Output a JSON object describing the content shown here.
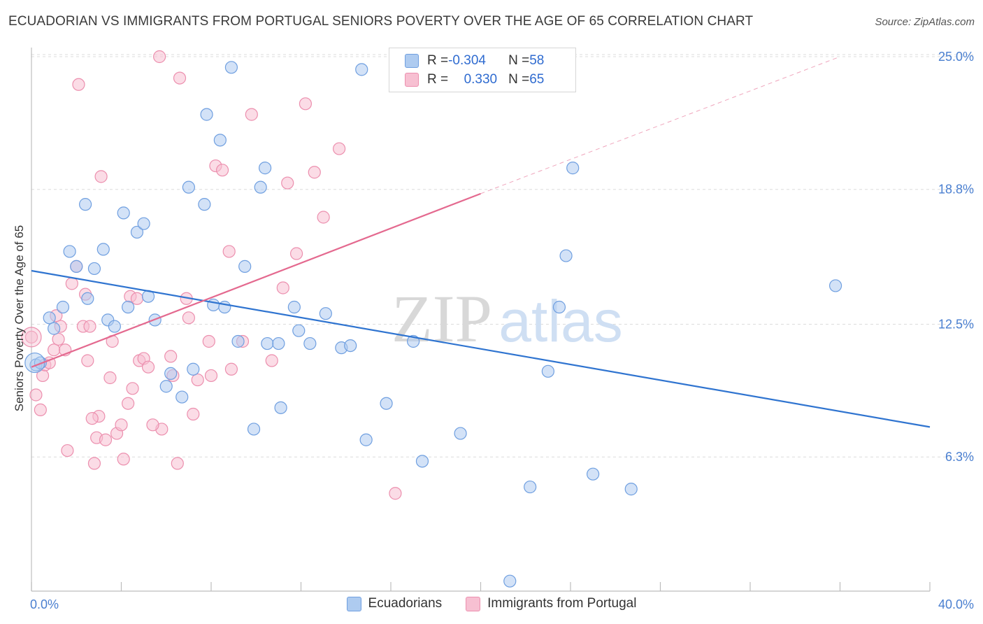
{
  "title": "ECUADORIAN VS IMMIGRANTS FROM PORTUGAL SENIORS POVERTY OVER THE AGE OF 65 CORRELATION CHART",
  "source": "Source: ZipAtlas.com",
  "watermark": {
    "zip": "ZIP",
    "atlas": "atlas"
  },
  "legend": {
    "series1": {
      "r_label": "R = ",
      "r_value": "-0.304",
      "n_label": "N = ",
      "n_value": "58"
    },
    "series2": {
      "r_label": "R = ",
      "r_value": "0.330",
      "n_label": "N = ",
      "n_value": "65"
    }
  },
  "colors": {
    "blue_fill": "#aecbf0",
    "blue_stroke": "#6f9fe0",
    "blue_line": "#2f74d0",
    "pink_fill": "#f7c0d2",
    "pink_stroke": "#ec8fae",
    "pink_line": "#e4698f",
    "grid": "#dcdcdc",
    "tick_text": "#4a7fd0"
  },
  "chart_data": {
    "type": "scatter",
    "xlabel": "",
    "ylabel": "Seniors Poverty Over the Age of 65",
    "xlim": [
      0,
      40
    ],
    "ylim": [
      0,
      25.6
    ],
    "x_tick_labels": [
      "0.0%",
      "40.0%"
    ],
    "y_ticks": [
      6.3,
      12.5,
      18.8,
      25.0
    ],
    "y_tick_labels": [
      "6.3%",
      "12.5%",
      "18.8%",
      "25.0%"
    ],
    "grid": "horizontal dashed",
    "legend_placement": "bottom",
    "series": [
      {
        "name": "Ecuadorians",
        "color": "#aecbf0",
        "trendline": {
          "x": [
            0,
            40
          ],
          "y": [
            15.0,
            7.7
          ]
        },
        "points": [
          [
            0.2,
            10.6
          ],
          [
            0.4,
            10.7
          ],
          [
            0.8,
            12.8
          ],
          [
            1.0,
            12.3
          ],
          [
            1.4,
            13.3
          ],
          [
            1.7,
            15.9
          ],
          [
            2.0,
            15.2
          ],
          [
            2.4,
            18.1
          ],
          [
            2.5,
            13.7
          ],
          [
            2.8,
            15.1
          ],
          [
            3.2,
            16.0
          ],
          [
            3.4,
            12.7
          ],
          [
            3.7,
            12.4
          ],
          [
            4.1,
            17.7
          ],
          [
            4.3,
            13.3
          ],
          [
            4.7,
            16.8
          ],
          [
            5.0,
            17.2
          ],
          [
            5.2,
            13.8
          ],
          [
            5.5,
            12.7
          ],
          [
            6.0,
            9.6
          ],
          [
            6.2,
            10.2
          ],
          [
            6.7,
            9.1
          ],
          [
            7.0,
            18.9
          ],
          [
            7.2,
            10.4
          ],
          [
            7.7,
            18.1
          ],
          [
            7.8,
            22.3
          ],
          [
            8.1,
            13.4
          ],
          [
            8.4,
            21.1
          ],
          [
            8.6,
            13.3
          ],
          [
            8.9,
            24.5
          ],
          [
            9.2,
            11.7
          ],
          [
            9.5,
            15.2
          ],
          [
            9.9,
            7.6
          ],
          [
            10.2,
            18.9
          ],
          [
            10.4,
            19.8
          ],
          [
            10.5,
            11.6
          ],
          [
            11.0,
            11.6
          ],
          [
            11.1,
            8.6
          ],
          [
            11.7,
            13.3
          ],
          [
            11.9,
            12.2
          ],
          [
            12.4,
            11.6
          ],
          [
            13.1,
            13.0
          ],
          [
            13.8,
            11.4
          ],
          [
            14.2,
            11.5
          ],
          [
            14.7,
            24.4
          ],
          [
            14.9,
            7.1
          ],
          [
            15.8,
            8.8
          ],
          [
            17.0,
            11.7
          ],
          [
            17.4,
            6.1
          ],
          [
            19.1,
            7.4
          ],
          [
            21.3,
            0.5
          ],
          [
            22.2,
            4.9
          ],
          [
            23.0,
            10.3
          ],
          [
            23.5,
            13.3
          ],
          [
            23.8,
            15.7
          ],
          [
            24.1,
            19.8
          ],
          [
            25.0,
            5.5
          ],
          [
            26.7,
            4.8
          ],
          [
            35.8,
            14.3
          ]
        ]
      },
      {
        "name": "Immigrants from Portugal",
        "color": "#f7c0d2",
        "trendline": {
          "x": [
            0,
            20
          ],
          "y": [
            10.5,
            18.6
          ]
        },
        "trendline_extension": {
          "x": [
            20,
            36
          ],
          "y": [
            18.6,
            25.0
          ]
        },
        "points": [
          [
            0.0,
            11.9
          ],
          [
            0.2,
            9.2
          ],
          [
            0.4,
            8.5
          ],
          [
            0.5,
            10.1
          ],
          [
            0.6,
            10.6
          ],
          [
            0.8,
            10.7
          ],
          [
            1.0,
            11.3
          ],
          [
            1.1,
            12.9
          ],
          [
            1.2,
            11.8
          ],
          [
            1.3,
            12.4
          ],
          [
            1.5,
            11.3
          ],
          [
            1.6,
            6.6
          ],
          [
            1.8,
            14.4
          ],
          [
            2.0,
            15.2
          ],
          [
            2.1,
            23.7
          ],
          [
            2.3,
            12.4
          ],
          [
            2.4,
            13.9
          ],
          [
            2.5,
            10.8
          ],
          [
            2.6,
            12.4
          ],
          [
            2.8,
            6.0
          ],
          [
            2.9,
            7.2
          ],
          [
            3.0,
            8.2
          ],
          [
            3.1,
            19.4
          ],
          [
            3.3,
            7.1
          ],
          [
            3.5,
            10.0
          ],
          [
            3.6,
            11.7
          ],
          [
            3.8,
            7.4
          ],
          [
            4.0,
            7.8
          ],
          [
            4.1,
            6.2
          ],
          [
            4.3,
            8.8
          ],
          [
            4.4,
            13.8
          ],
          [
            4.5,
            9.5
          ],
          [
            4.7,
            13.7
          ],
          [
            4.8,
            10.8
          ],
          [
            5.0,
            10.9
          ],
          [
            5.2,
            10.5
          ],
          [
            5.7,
            25.0
          ],
          [
            5.8,
            7.6
          ],
          [
            6.2,
            11.0
          ],
          [
            6.3,
            10.1
          ],
          [
            6.5,
            6.0
          ],
          [
            6.6,
            24.0
          ],
          [
            6.9,
            13.7
          ],
          [
            7.0,
            12.8
          ],
          [
            7.2,
            8.3
          ],
          [
            7.4,
            9.9
          ],
          [
            7.9,
            11.7
          ],
          [
            8.0,
            10.1
          ],
          [
            8.2,
            19.9
          ],
          [
            8.5,
            19.7
          ],
          [
            8.8,
            15.9
          ],
          [
            8.9,
            10.4
          ],
          [
            9.4,
            11.7
          ],
          [
            9.8,
            22.3
          ],
          [
            10.7,
            10.8
          ],
          [
            11.2,
            14.2
          ],
          [
            11.4,
            19.1
          ],
          [
            11.8,
            15.8
          ],
          [
            12.2,
            22.8
          ],
          [
            12.6,
            19.6
          ],
          [
            13.0,
            17.5
          ],
          [
            13.7,
            20.7
          ],
          [
            16.2,
            4.6
          ],
          [
            5.4,
            7.8
          ],
          [
            2.7,
            8.1
          ]
        ]
      }
    ]
  }
}
